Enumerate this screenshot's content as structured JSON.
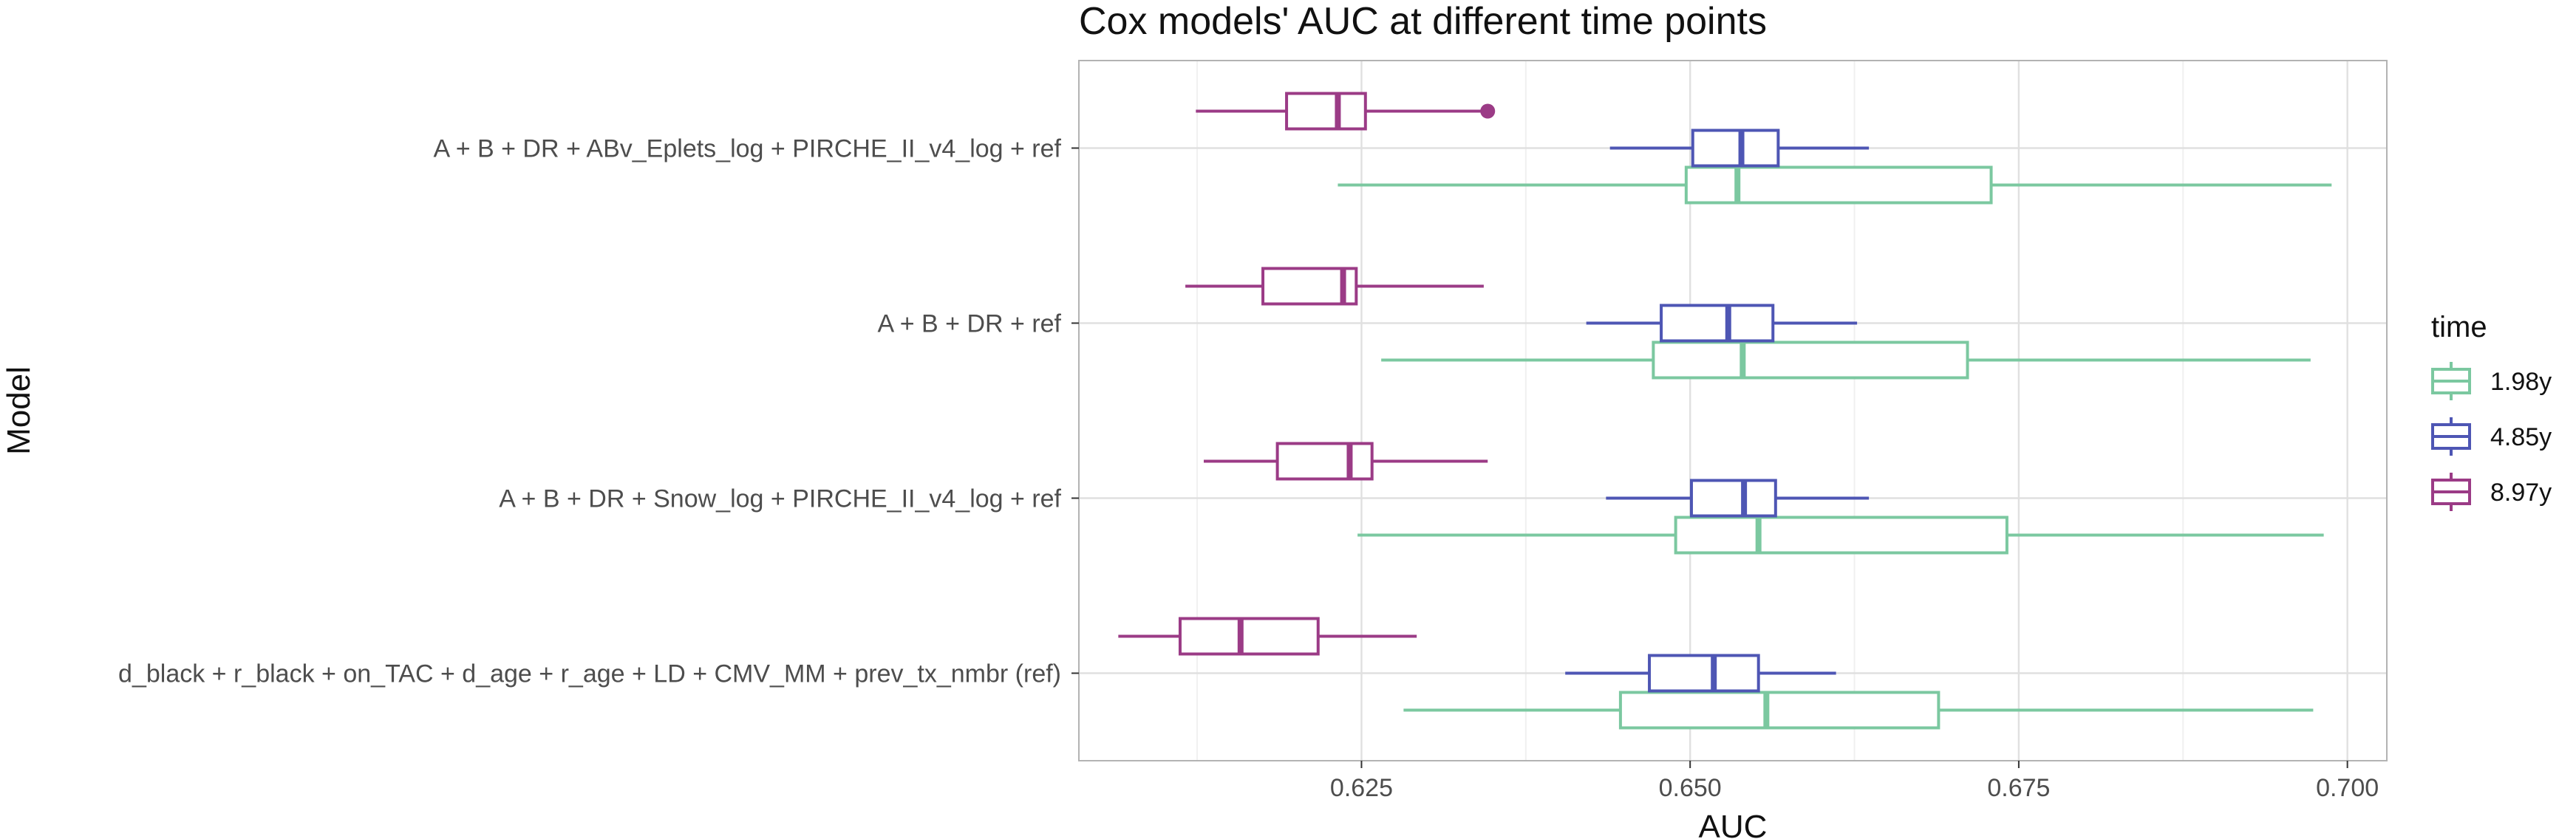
{
  "chart_data": {
    "type": "boxplot",
    "orientation": "horizontal",
    "title": "Cox models' AUC at different time points",
    "xlabel": "AUC",
    "ylabel": "Model",
    "xlim": [
      0.6035,
      0.703
    ],
    "x_ticks": [
      0.625,
      0.65,
      0.675,
      0.7
    ],
    "x_tick_labels": [
      "0.625",
      "0.650",
      "0.675",
      "0.700"
    ],
    "grid": true,
    "legend": {
      "title": "time",
      "position": "right"
    },
    "categories": [
      "A + B + DR + ABv_Eplets_log + PIRCHE_II_v4_log + ref",
      "A + B + DR + ref",
      "A + B + DR + Snow_log + PIRCHE_II_v4_log + ref",
      "d_black + r_black + on_TAC + d_age + r_age + LD + CMV_MM + prev_tx_nmbr (ref)"
    ],
    "series": [
      {
        "name": "1.98y",
        "color": "#7bc8a0",
        "boxes": [
          {
            "whisker_low": 0.6232,
            "q1": 0.6497,
            "median": 0.6536,
            "q3": 0.6729,
            "whisker_high": 0.6988,
            "outliers": []
          },
          {
            "whisker_low": 0.6265,
            "q1": 0.6472,
            "median": 0.654,
            "q3": 0.6711,
            "whisker_high": 0.6972,
            "outliers": []
          },
          {
            "whisker_low": 0.6247,
            "q1": 0.6489,
            "median": 0.6552,
            "q3": 0.6741,
            "whisker_high": 0.6982,
            "outliers": []
          },
          {
            "whisker_low": 0.6282,
            "q1": 0.6447,
            "median": 0.6558,
            "q3": 0.6689,
            "whisker_high": 0.6974,
            "outliers": []
          }
        ]
      },
      {
        "name": "4.85y",
        "color": "#4e56b4",
        "boxes": [
          {
            "whisker_low": 0.6439,
            "q1": 0.6502,
            "median": 0.6539,
            "q3": 0.6567,
            "whisker_high": 0.6636,
            "outliers": []
          },
          {
            "whisker_low": 0.6421,
            "q1": 0.6478,
            "median": 0.6529,
            "q3": 0.6563,
            "whisker_high": 0.6627,
            "outliers": []
          },
          {
            "whisker_low": 0.6436,
            "q1": 0.6501,
            "median": 0.6541,
            "q3": 0.6565,
            "whisker_high": 0.6636,
            "outliers": []
          },
          {
            "whisker_low": 0.6405,
            "q1": 0.6469,
            "median": 0.6518,
            "q3": 0.6552,
            "whisker_high": 0.6611,
            "outliers": []
          }
        ]
      },
      {
        "name": "8.97y",
        "color": "#9b3b86",
        "boxes": [
          {
            "whisker_low": 0.6124,
            "q1": 0.6193,
            "median": 0.6232,
            "q3": 0.6253,
            "whisker_high": 0.6346,
            "outliers": [
              0.6346
            ]
          },
          {
            "whisker_low": 0.6116,
            "q1": 0.6175,
            "median": 0.6236,
            "q3": 0.6246,
            "whisker_high": 0.6343,
            "outliers": []
          },
          {
            "whisker_low": 0.613,
            "q1": 0.6186,
            "median": 0.6241,
            "q3": 0.6258,
            "whisker_high": 0.6346,
            "outliers": []
          },
          {
            "whisker_low": 0.6065,
            "q1": 0.6112,
            "median": 0.6158,
            "q3": 0.6217,
            "whisker_high": 0.6292,
            "outliers": []
          }
        ]
      }
    ]
  }
}
